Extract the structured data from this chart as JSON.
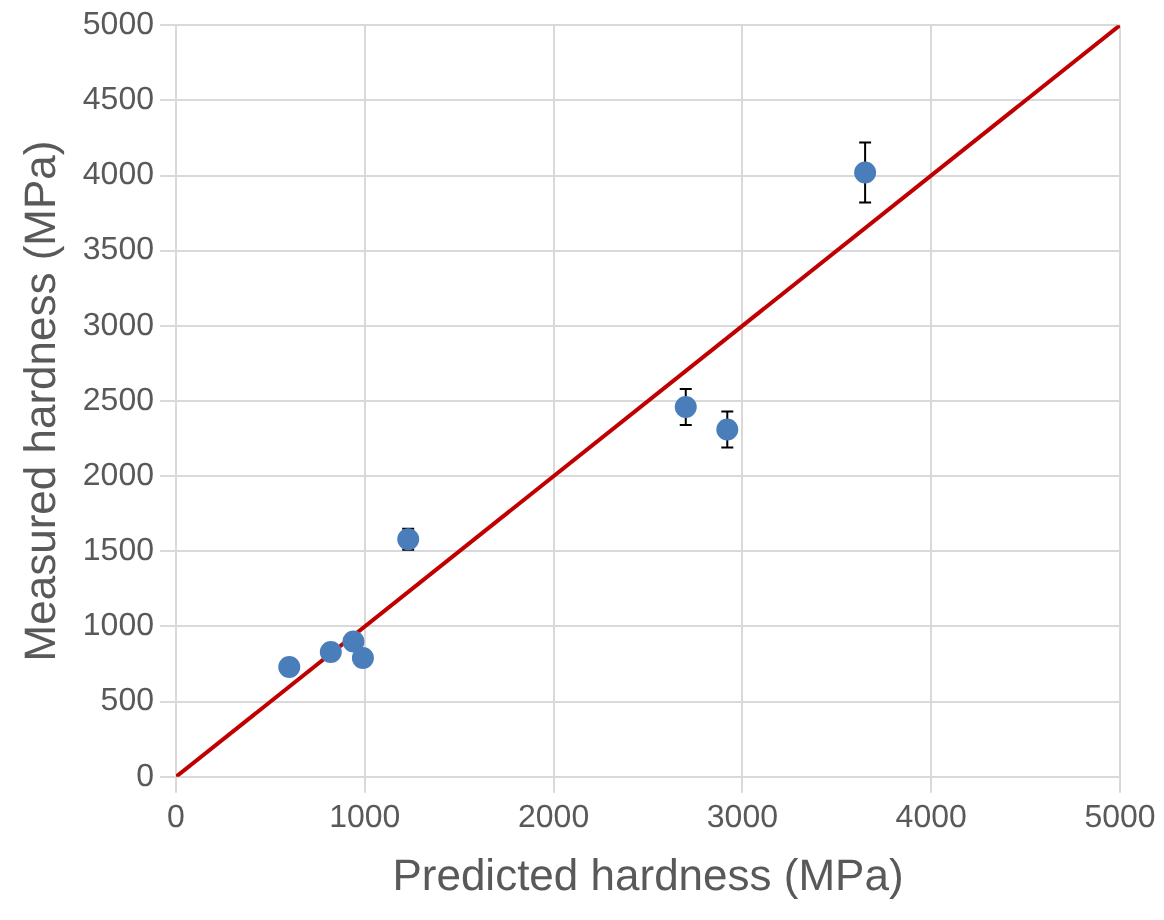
{
  "chart_data": {
    "type": "scatter",
    "xlabel": "Predicted hardness (MPa)",
    "ylabel": "Measured hardness (MPa)",
    "xlim": [
      0,
      5000
    ],
    "xticks": [
      0,
      1000,
      2000,
      3000,
      4000,
      5000
    ],
    "ylim": [
      0,
      5000
    ],
    "yticks": [
      0,
      500,
      1000,
      1500,
      2000,
      2500,
      3000,
      3500,
      4000,
      4500,
      5000
    ],
    "grid": true,
    "legend": false,
    "series": [
      {
        "color": "#4a7ebb",
        "x": [
          600,
          820,
          940,
          990,
          1230,
          2700,
          2920,
          3650
        ],
        "values": [
          730,
          830,
          900,
          790,
          1580,
          2460,
          2310,
          4020
        ],
        "errors": [
          null,
          null,
          null,
          null,
          70,
          120,
          120,
          200
        ],
        "marker": "circle"
      },
      {
        "type": "line",
        "color": "#c00000",
        "x": [
          0,
          5000
        ],
        "values": [
          0,
          5000
        ],
        "line_style": "solid"
      }
    ]
  }
}
